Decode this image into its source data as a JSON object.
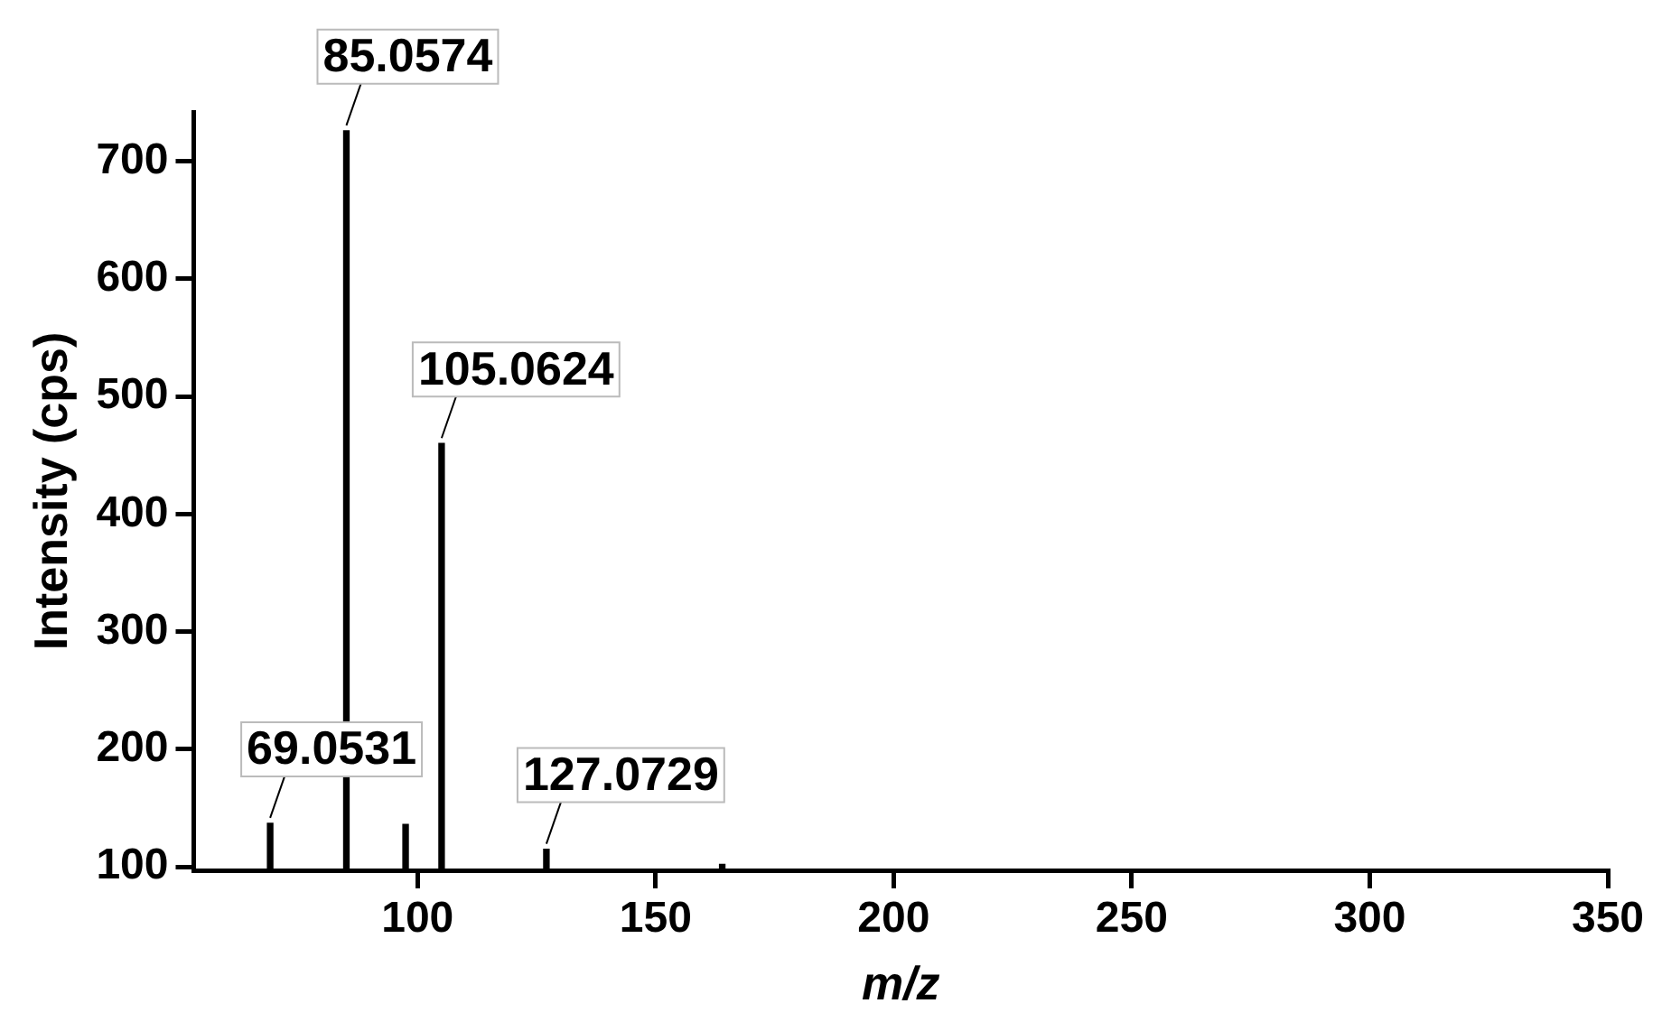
{
  "chart_data": {
    "type": "bar",
    "xlabel": "m/z",
    "ylabel": "Intensity (cps)",
    "x": [
      69.05,
      85.06,
      97.5,
      105.06,
      127.07,
      164
    ],
    "series": [
      {
        "color": "#000000",
        "values": [
          137,
          726,
          136,
          460,
          115,
          102
        ]
      }
    ],
    "xlim": [
      53,
      350
    ],
    "xticks": [
      100,
      150,
      200,
      250,
      300,
      350
    ],
    "ylim": [
      97,
      742
    ],
    "yticks": [
      100,
      200,
      300,
      400,
      500,
      600,
      700
    ],
    "grid": false,
    "legend": false,
    "annotations": [
      {
        "text": "69.0531",
        "x": 69.05,
        "y": 137
      },
      {
        "text": "85.0574",
        "x": 85.06,
        "y": 726
      },
      {
        "text": "105.0624",
        "x": 105.06,
        "y": 460
      },
      {
        "text": "127.0729",
        "x": 127.07,
        "y": 115
      }
    ]
  }
}
